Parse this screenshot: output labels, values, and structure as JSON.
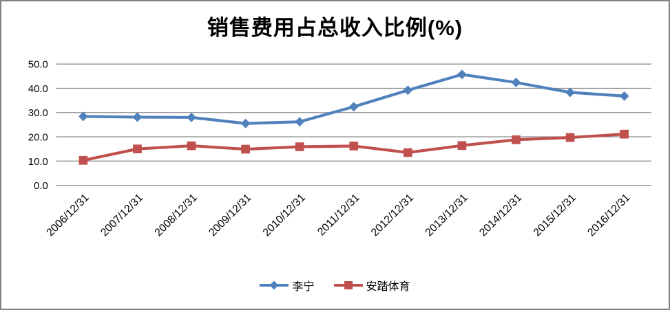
{
  "window": {
    "background": "#ffffff",
    "border_color": "#808080"
  },
  "chart_data": {
    "type": "line",
    "title": "销售费用占总收入比例(%)",
    "xlabel": "",
    "ylabel": "",
    "x": [
      "2006/12/31",
      "2007/12/31",
      "2008/12/31",
      "2009/12/31",
      "2010/12/31",
      "2011/12/31",
      "2012/12/31",
      "2013/12/31",
      "2014/12/31",
      "2015/12/31",
      "2016/12/31"
    ],
    "series": [
      {
        "name": "李宁",
        "color": "#4F81BD",
        "marker": "diamond",
        "values": [
          28.4,
          28.1,
          28.0,
          25.5,
          26.2,
          32.4,
          39.2,
          45.7,
          42.4,
          38.3,
          36.8
        ]
      },
      {
        "name": "安踏体育",
        "color": "#C0504D",
        "marker": "square",
        "values": [
          10.3,
          15.0,
          16.3,
          14.9,
          15.9,
          16.2,
          13.5,
          16.4,
          18.8,
          19.7,
          21.1
        ]
      }
    ],
    "ylim": [
      0,
      50
    ],
    "ytick_step": 10,
    "ytick_labels": [
      "0.0",
      "10.0",
      "20.0",
      "30.0",
      "40.0",
      "50.0"
    ],
    "grid": "horizontal-gridlines",
    "gridline_color": "#8C8C8C",
    "tick_label_color": "#000000",
    "tick_label_font_px": 15,
    "x_labels_rotation_deg": -45,
    "legend_position": "bottom"
  }
}
